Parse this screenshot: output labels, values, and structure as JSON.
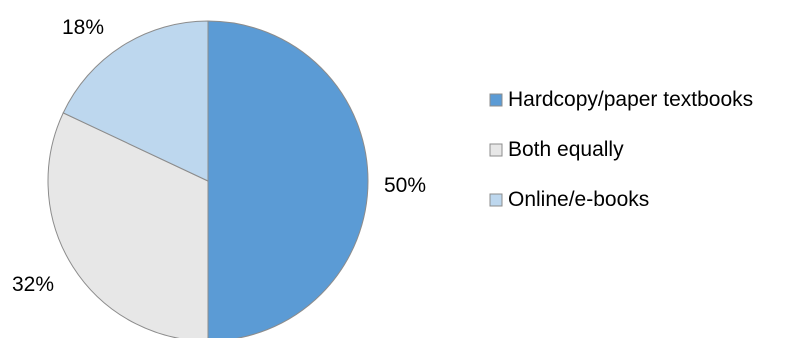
{
  "chart_data": {
    "type": "pie",
    "title": "",
    "categories": [
      "Hardcopy/paper textbooks",
      "Both equally",
      "Online/e-books"
    ],
    "values": [
      50,
      32,
      18
    ],
    "value_labels": [
      "50%",
      "32%",
      "18%"
    ],
    "unit": "%",
    "colors": [
      "#5b9bd5",
      "#e7e7e7",
      "#bdd7ee"
    ],
    "slice_order": "clockwise from top",
    "legend_position": "right"
  }
}
